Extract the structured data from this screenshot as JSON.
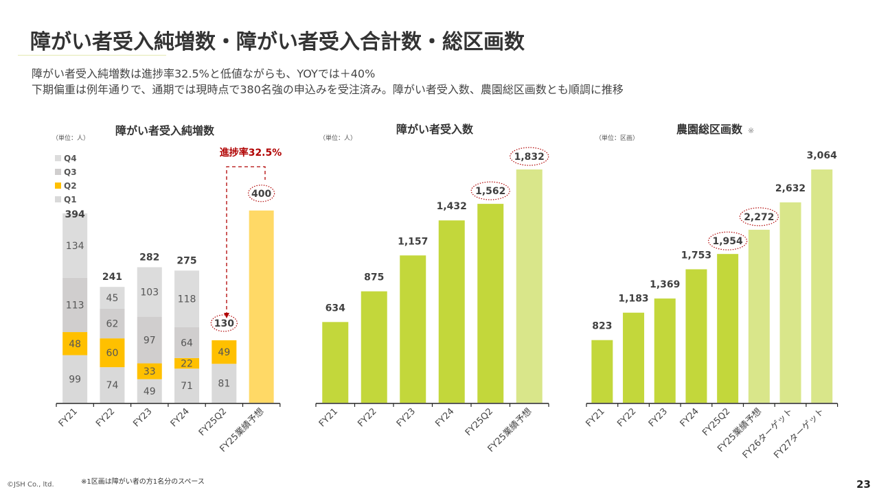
{
  "header": {
    "title": "障がい者受入純増数・障がい者受入合計数・総区画数",
    "subtitle_lines": [
      "障がい者受入純増数は進捗率32.5%と低値ながらも、YOYでは＋40%",
      "下期偏重は例年通りで、通期では現時点で380名強の申込みを受注済み。障がい者受入数、農園総区画数とも順調に推移"
    ]
  },
  "colors": {
    "q1": "#d9d9d9",
    "q2": "#ffc000",
    "q3": "#d0cece",
    "q4": "#dcdcdc",
    "forecast_yellow": "#ffd966",
    "green": "#c3d73b",
    "light_green": "#d9e68a",
    "highlight_red": "#b00000"
  },
  "chart_data": [
    {
      "type": "bar",
      "stacked": true,
      "title": "障がい者受入純増数",
      "unit_label": "（単位：人）",
      "categories": [
        "FY21",
        "FY22",
        "FY23",
        "FY24",
        "FY25Q2",
        "FY25業績予想"
      ],
      "legend": [
        "Q4",
        "Q3",
        "Q2",
        "Q1"
      ],
      "legend_placement": "top-left",
      "series": [
        {
          "name": "Q1",
          "values": [
            99,
            74,
            49,
            71,
            81,
            null
          ]
        },
        {
          "name": "Q2",
          "values": [
            48,
            60,
            33,
            22,
            49,
            null
          ]
        },
        {
          "name": "Q3",
          "values": [
            113,
            62,
            97,
            64,
            null,
            null
          ]
        },
        {
          "name": "Q4",
          "values": [
            134,
            45,
            103,
            118,
            null,
            null
          ]
        },
        {
          "name": "FY25業績予想",
          "values": [
            null,
            null,
            null,
            null,
            null,
            400
          ]
        }
      ],
      "totals": [
        394,
        241,
        282,
        275,
        130,
        400
      ],
      "total_labels": [
        "394",
        "241",
        "282",
        "275",
        "130",
        "400"
      ],
      "circled_totals": [
        4,
        5
      ],
      "annotation": "進捗率32.5%",
      "ylim": [
        0,
        420
      ]
    },
    {
      "type": "bar",
      "title": "障がい者受入数",
      "unit_label": "（単位：人）",
      "categories": [
        "FY21",
        "FY22",
        "FY23",
        "FY24",
        "FY25Q2",
        "FY25業績予想"
      ],
      "values": [
        634,
        875,
        1157,
        1432,
        1562,
        1832
      ],
      "value_labels": [
        "634",
        "875",
        "1,157",
        "1,432",
        "1,562",
        "1,832"
      ],
      "forecast_from_index": 5,
      "circled": [
        4,
        5
      ],
      "ylim": [
        0,
        1900
      ]
    },
    {
      "type": "bar",
      "title": "農園総区画数",
      "title_mark": "※",
      "unit_label": "（単位：区画）",
      "categories": [
        "FY21",
        "FY22",
        "FY23",
        "FY24",
        "FY25Q2",
        "FY25業績予想",
        "FY26ターゲット",
        "FY27ターゲット"
      ],
      "values": [
        823,
        1183,
        1369,
        1753,
        1954,
        2272,
        2632,
        3064
      ],
      "value_labels": [
        "823",
        "1,183",
        "1,369",
        "1,753",
        "1,954",
        "2,272",
        "2,632",
        "3,064"
      ],
      "forecast_from_index": 5,
      "circled": [
        4,
        5
      ],
      "ylim": [
        0,
        3150
      ]
    }
  ],
  "footer": {
    "copyright": "©JSH Co., ltd.",
    "note": "※1区画は障がい者の方1名分のスペース",
    "page_number": "23"
  }
}
